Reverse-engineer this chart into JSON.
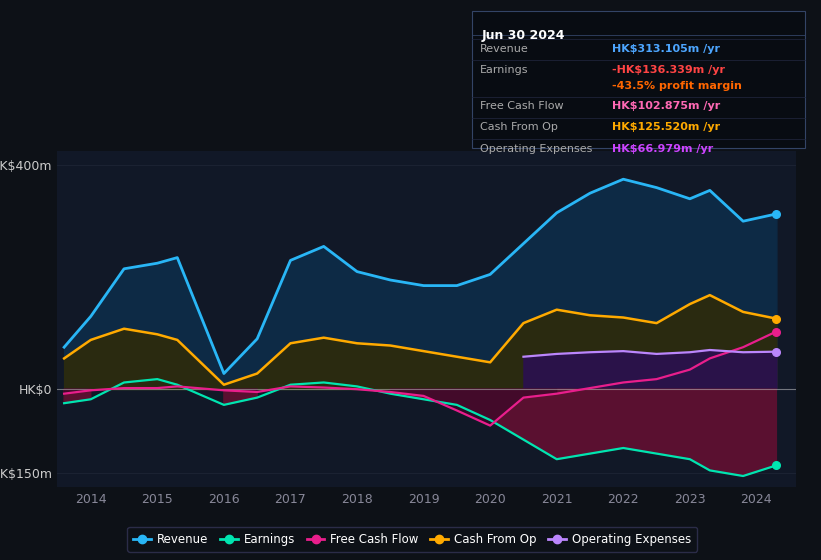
{
  "background_color": "#0d1117",
  "plot_bg_color": "#111827",
  "title_box": {
    "date": "Jun 30 2024",
    "rows": [
      {
        "label": "Revenue",
        "value": "HK$313.105m",
        "value_color": "#4da6ff",
        "suffix": " /yr",
        "extra": null,
        "extra_color": null
      },
      {
        "label": "Earnings",
        "value": "-HK$136.339m",
        "value_color": "#ff4444",
        "suffix": " /yr",
        "extra": "-43.5% profit margin",
        "extra_color": "#ff6600"
      },
      {
        "label": "Free Cash Flow",
        "value": "HK$102.875m",
        "value_color": "#ff69b4",
        "suffix": " /yr",
        "extra": null,
        "extra_color": null
      },
      {
        "label": "Cash From Op",
        "value": "HK$125.520m",
        "value_color": "#ffaa00",
        "suffix": " /yr",
        "extra": null,
        "extra_color": null
      },
      {
        "label": "Operating Expenses",
        "value": "HK$66.979m",
        "value_color": "#cc44ff",
        "suffix": " /yr",
        "extra": null,
        "extra_color": null
      }
    ]
  },
  "years": [
    2013.6,
    2014.0,
    2014.5,
    2015.0,
    2015.3,
    2016.0,
    2016.5,
    2017.0,
    2017.5,
    2018.0,
    2018.5,
    2019.0,
    2019.5,
    2020.0,
    2020.5,
    2021.0,
    2021.5,
    2022.0,
    2022.5,
    2023.0,
    2023.3,
    2023.8,
    2024.3
  ],
  "revenue": [
    75,
    130,
    215,
    225,
    235,
    28,
    90,
    230,
    255,
    210,
    195,
    185,
    185,
    205,
    260,
    315,
    350,
    375,
    360,
    340,
    355,
    300,
    313
  ],
  "earnings": [
    -25,
    -18,
    12,
    18,
    8,
    -28,
    -15,
    8,
    12,
    5,
    -8,
    -18,
    -28,
    -55,
    -90,
    -125,
    -115,
    -105,
    -115,
    -125,
    -145,
    -155,
    -136
  ],
  "free_cash_flow": [
    -8,
    -2,
    2,
    2,
    5,
    -2,
    -5,
    5,
    3,
    0,
    -5,
    -12,
    -38,
    -65,
    -15,
    -8,
    2,
    12,
    18,
    35,
    55,
    75,
    103
  ],
  "cash_from_op": [
    55,
    88,
    108,
    98,
    88,
    8,
    28,
    82,
    92,
    82,
    78,
    68,
    58,
    48,
    118,
    142,
    132,
    128,
    118,
    152,
    168,
    138,
    126
  ],
  "operating_expenses": [
    null,
    null,
    null,
    null,
    null,
    null,
    null,
    null,
    null,
    null,
    null,
    null,
    null,
    null,
    58,
    63,
    66,
    68,
    63,
    66,
    70,
    66,
    67
  ],
  "ylim": [
    -175,
    425
  ],
  "yticks": [
    400,
    0,
    -150
  ],
  "ytick_labels": [
    "HK$400m",
    "HK$0",
    "-HK$150m"
  ],
  "xlim": [
    2013.5,
    2024.6
  ],
  "xtick_years": [
    2014,
    2015,
    2016,
    2017,
    2018,
    2019,
    2020,
    2021,
    2022,
    2023,
    2024
  ],
  "colors": {
    "revenue": "#29b6f6",
    "earnings": "#00e5b0",
    "free_cash_flow": "#e91e8c",
    "cash_from_op": "#ffaa00",
    "operating_expenses": "#bb86fc",
    "revenue_fill": "#0d2a45",
    "earnings_fill_neg": "#5a1030",
    "cash_from_op_fill": "#2a2a10",
    "operating_expenses_fill": "#2a1050"
  },
  "legend": [
    {
      "label": "Revenue",
      "color": "#29b6f6"
    },
    {
      "label": "Earnings",
      "color": "#00e5b0"
    },
    {
      "label": "Free Cash Flow",
      "color": "#e91e8c"
    },
    {
      "label": "Cash From Op",
      "color": "#ffaa00"
    },
    {
      "label": "Operating Expenses",
      "color": "#bb86fc"
    }
  ],
  "grid_color": "#1e2535",
  "zero_line_color": "#cccccc",
  "tick_color": "#888899",
  "label_color": "#aaaaaa"
}
